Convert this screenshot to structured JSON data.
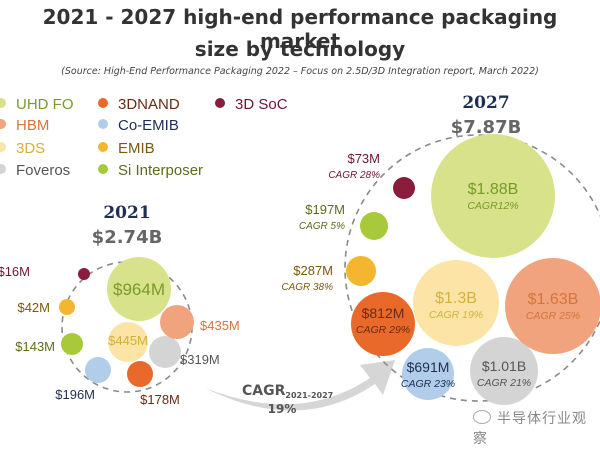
{
  "header": {
    "title_line1": "2021 - 2027 high-end performance packaging market",
    "title_line2": "size by technology",
    "subtitle": "(Source: High-End Performance Packaging 2022 – Focus on 2.5D/3D Integration report, March 2022)"
  },
  "watermark": "半导体行业观察",
  "chart_data": {
    "type": "bubble",
    "title": "2021 - 2027 high-end performance packaging market size by technology",
    "legend": [
      {
        "name": "UHD FO",
        "color": "#d8e28a",
        "text_color": "#7a9a2a"
      },
      {
        "name": "HBM",
        "color": "#f0a37c",
        "text_color": "#d7743e"
      },
      {
        "name": "3DS",
        "color": "#fbe4a6",
        "text_color": "#d4b13a"
      },
      {
        "name": "Foveros",
        "color": "#d4d4d4",
        "text_color": "#555555"
      },
      {
        "name": "3DNAND",
        "color": "#e8692a",
        "text_color": "#6b2a12"
      },
      {
        "name": "Co-EMIB",
        "color": "#b1cdea",
        "text_color": "#1e2f52"
      },
      {
        "name": "EMIB",
        "color": "#f3b62e",
        "text_color": "#7a5a10"
      },
      {
        "name": "Si Interposer",
        "color": "#a8c93a",
        "text_color": "#5a6e1a"
      },
      {
        "name": "3D SoC",
        "color": "#8a1c3c",
        "text_color": "#6e1430"
      }
    ],
    "years": [
      {
        "year": "2021",
        "total": "$2.74B",
        "bubbles": [
          {
            "tech": "3D SoC",
            "label": "$16M",
            "value_musd": 16
          },
          {
            "tech": "EMIB",
            "label": "$42M",
            "value_musd": 42
          },
          {
            "tech": "Si Interposer",
            "label": "$143M",
            "value_musd": 143
          },
          {
            "tech": "Co-EMIB",
            "label": "$196M",
            "value_musd": 196
          },
          {
            "tech": "3DNAND",
            "label": "$178M",
            "value_musd": 178
          },
          {
            "tech": "Foveros",
            "label": "$319M",
            "value_musd": 319
          },
          {
            "tech": "HBM",
            "label": "$435M",
            "value_musd": 435
          },
          {
            "tech": "3DS",
            "label": "$445M",
            "value_musd": 445
          },
          {
            "tech": "UHD FO",
            "label": "$964M",
            "value_musd": 964
          }
        ]
      },
      {
        "year": "2027",
        "total": "$7.87B",
        "bubbles": [
          {
            "tech": "3D SoC",
            "label": "$73M",
            "cagr": "CAGR 28%",
            "value_musd": 73
          },
          {
            "tech": "Si Interposer",
            "label": "$197M",
            "cagr": "CAGR 5%",
            "value_musd": 197
          },
          {
            "tech": "EMIB",
            "label": "$287M",
            "cagr": "CAGR 38%",
            "value_musd": 287
          },
          {
            "tech": "3DNAND",
            "label": "$812M",
            "cagr": "CAGR 29%",
            "value_musd": 812
          },
          {
            "tech": "Co-EMIB",
            "label": "$691M",
            "cagr": "CAGR 23%",
            "value_musd": 691
          },
          {
            "tech": "3DS",
            "label": "$1.3B",
            "cagr": "CAGR 19%",
            "value_musd": 1300
          },
          {
            "tech": "Foveros",
            "label": "$1.01B",
            "cagr": "CAGR 21%",
            "value_musd": 1010
          },
          {
            "tech": "HBM",
            "label": "$1.63B",
            "cagr": "CAGR 25%",
            "value_musd": 1630
          },
          {
            "tech": "UHD FO",
            "label": "$1.88B",
            "cagr": "CAGR12%",
            "value_musd": 1880
          }
        ]
      }
    ],
    "overall_cagr": {
      "label": "CAGR",
      "period": "2021-2027",
      "value": "19%"
    }
  }
}
